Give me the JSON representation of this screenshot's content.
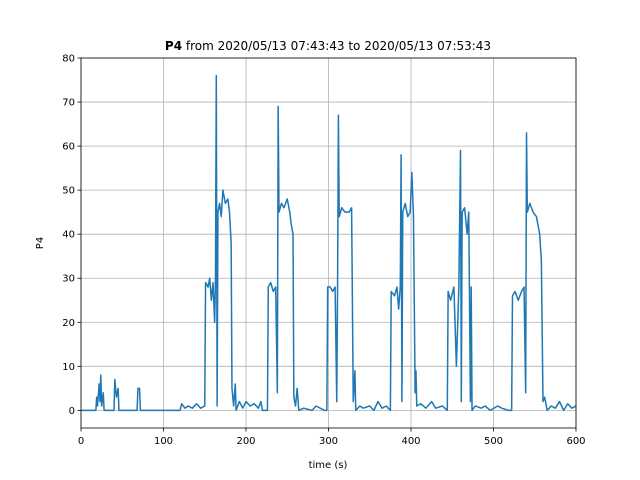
{
  "chart_data": {
    "type": "line",
    "title": {
      "bold": "P4",
      "text": "from 2020/05/13 07:43:43 to 2020/05/13 07:53:43"
    },
    "xlabel": "time (s)",
    "ylabel": "P4",
    "xlim": [
      0,
      600
    ],
    "xticks": [
      0,
      100,
      200,
      300,
      400,
      500,
      600
    ],
    "ylim": [
      -4,
      80
    ],
    "yticks": [
      0,
      10,
      20,
      30,
      40,
      50,
      60,
      70,
      80
    ],
    "grid": true,
    "series": [
      {
        "name": "P4",
        "color": "#1f77b4",
        "x": [
          0,
          18,
          19,
          20,
          22,
          23,
          24,
          25,
          27,
          28,
          40,
          41,
          43,
          45,
          46,
          68,
          69,
          71,
          72,
          120,
          122,
          126,
          130,
          135,
          140,
          145,
          150,
          151,
          154,
          156,
          158,
          160,
          162,
          163,
          164,
          165,
          166,
          168,
          170,
          172,
          175,
          178,
          180,
          182,
          183,
          185,
          187,
          188,
          192,
          196,
          200,
          205,
          210,
          215,
          218,
          220,
          226,
          227,
          230,
          233,
          236,
          238,
          239,
          240,
          243,
          246,
          250,
          253,
          255,
          257,
          258,
          260,
          262,
          264,
          270,
          280,
          285,
          290,
          295,
          298,
          299,
          302,
          305,
          308,
          310,
          311,
          312,
          313,
          316,
          320,
          325,
          328,
          330,
          332,
          333,
          338,
          342,
          350,
          355,
          360,
          365,
          370,
          375,
          376,
          380,
          383,
          385,
          387,
          388,
          389,
          390,
          393,
          396,
          399,
          401,
          403,
          405,
          406,
          407,
          412,
          418,
          425,
          430,
          438,
          444,
          445,
          448,
          452,
          455,
          458,
          460,
          461,
          462,
          465,
          468,
          470,
          472,
          473,
          474,
          478,
          485,
          490,
          496,
          505,
          510,
          518,
          522,
          523,
          526,
          530,
          534,
          537,
          539,
          540,
          541,
          544,
          548,
          552,
          556,
          558,
          560,
          562,
          565,
          570,
          575,
          580,
          585,
          590,
          595,
          600
        ],
        "values": [
          0,
          0,
          3,
          1,
          6,
          2,
          8,
          1,
          4,
          0,
          0,
          7,
          3,
          5,
          0,
          0,
          5,
          5,
          0,
          0,
          1.5,
          0.5,
          1,
          0.5,
          1.5,
          0.5,
          1,
          29,
          28,
          30,
          25,
          29,
          20,
          30,
          76,
          1,
          45,
          47,
          44,
          50,
          47,
          48,
          45,
          38,
          5,
          1,
          6,
          0,
          2,
          0.5,
          2,
          1,
          1.5,
          0.5,
          2,
          0,
          0,
          28,
          29,
          27,
          28,
          4,
          69,
          45,
          47,
          46,
          48,
          45,
          42,
          40,
          3,
          1,
          5,
          0,
          0.5,
          0,
          1,
          0.5,
          0,
          0,
          28,
          28,
          27,
          28,
          2,
          28,
          67,
          44,
          46,
          45,
          45,
          46,
          2,
          9,
          0,
          1,
          0.5,
          1,
          0,
          2,
          0.5,
          1,
          0,
          27,
          26,
          28,
          23,
          28,
          58,
          2,
          45,
          47,
          44,
          45,
          54,
          44,
          4,
          9,
          1,
          1.5,
          0.5,
          2,
          0.5,
          1,
          0,
          27,
          25,
          28,
          10,
          28,
          59,
          2,
          45,
          46,
          40,
          45,
          2,
          28,
          0,
          1,
          0.5,
          1,
          0,
          1,
          0.5,
          0,
          0,
          26,
          27,
          25,
          27,
          28,
          4,
          63,
          45,
          47,
          45,
          44,
          40,
          34,
          2,
          3,
          0,
          1,
          0.5,
          2,
          0,
          1.5,
          0.5,
          1
        ]
      }
    ]
  }
}
